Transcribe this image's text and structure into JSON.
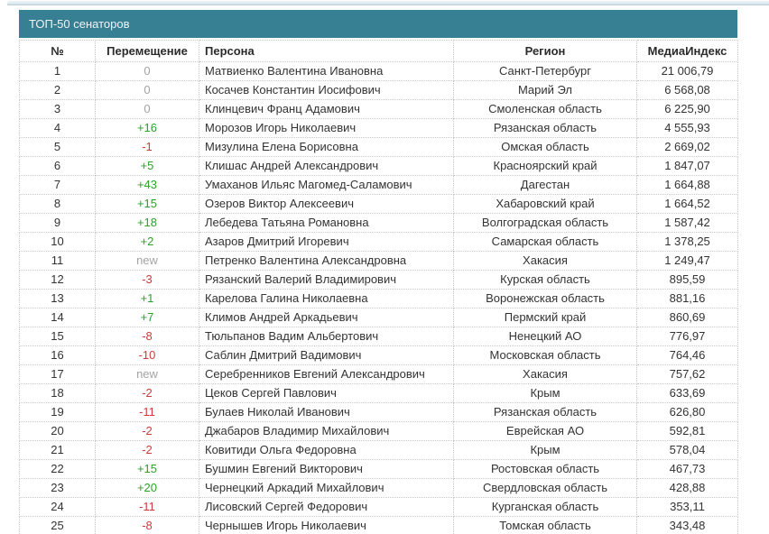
{
  "panel": {
    "title": "ТОП-50 сенаторов"
  },
  "colors": {
    "header_bg": "#377f93",
    "positive": "#2da02d",
    "negative": "#cc3b3b",
    "neutral": "#a3a3a3",
    "border": "#c9c9c9",
    "text": "#333333"
  },
  "table": {
    "columns": {
      "rank": "№",
      "movement": "Перемещение",
      "person": "Персона",
      "region": "Регион",
      "media_index": "МедиаИндекс"
    },
    "rows": [
      {
        "rank": "1",
        "movement": "0",
        "person": "Матвиенко Валентина Ивановна",
        "region": "Санкт-Петербург",
        "media_index": "21 006,79"
      },
      {
        "rank": "2",
        "movement": "0",
        "person": "Косачев Константин Иосифович",
        "region": "Марий Эл",
        "media_index": "6 568,08"
      },
      {
        "rank": "3",
        "movement": "0",
        "person": "Клинцевич Франц Адамович",
        "region": "Смоленская область",
        "media_index": "6 225,90"
      },
      {
        "rank": "4",
        "movement": "+16",
        "person": "Морозов Игорь Николаевич",
        "region": "Рязанская область",
        "media_index": "4 555,93"
      },
      {
        "rank": "5",
        "movement": "-1",
        "person": "Мизулина Елена Борисовна",
        "region": "Омская область",
        "media_index": "2 669,02"
      },
      {
        "rank": "6",
        "movement": "+5",
        "person": "Клишас Андрей Александрович",
        "region": "Красноярский край",
        "media_index": "1 847,07"
      },
      {
        "rank": "7",
        "movement": "+43",
        "person": "Умаханов Ильяс Магомед-Саламович",
        "region": "Дагестан",
        "media_index": "1 664,88"
      },
      {
        "rank": "8",
        "movement": "+15",
        "person": "Озеров Виктор Алексеевич",
        "region": "Хабаровский край",
        "media_index": "1 664,52"
      },
      {
        "rank": "9",
        "movement": "+18",
        "person": "Лебедева Татьяна Романовна",
        "region": "Волгоградская область",
        "media_index": "1 587,42"
      },
      {
        "rank": "10",
        "movement": "+2",
        "person": "Азаров Дмитрий Игоревич",
        "region": "Самарская область",
        "media_index": "1 378,25"
      },
      {
        "rank": "11",
        "movement": "new",
        "person": "Петренко Валентина Александровна",
        "region": "Хакасия",
        "media_index": "1 249,47"
      },
      {
        "rank": "12",
        "movement": "-3",
        "person": "Рязанский Валерий Владимирович",
        "region": "Курская область",
        "media_index": "895,59"
      },
      {
        "rank": "13",
        "movement": "+1",
        "person": "Карелова Галина Николаевна",
        "region": "Воронежская область",
        "media_index": "881,16"
      },
      {
        "rank": "14",
        "movement": "+7",
        "person": "Климов Андрей Аркадьевич",
        "region": "Пермский край",
        "media_index": "860,69"
      },
      {
        "rank": "15",
        "movement": "-8",
        "person": "Тюльпанов Вадим Альбертович",
        "region": "Ненецкий АО",
        "media_index": "776,97"
      },
      {
        "rank": "16",
        "movement": "-10",
        "person": "Саблин Дмитрий Вадимович",
        "region": "Московская область",
        "media_index": "764,46"
      },
      {
        "rank": "17",
        "movement": "new",
        "person": "Серебренников Евгений Александрович",
        "region": "Хакасия",
        "media_index": "757,62"
      },
      {
        "rank": "18",
        "movement": "-2",
        "person": "Цеков Сергей Павлович",
        "region": "Крым",
        "media_index": "633,69"
      },
      {
        "rank": "19",
        "movement": "-11",
        "person": "Булаев Николай Иванович",
        "region": "Рязанская область",
        "media_index": "626,80"
      },
      {
        "rank": "20",
        "movement": "-2",
        "person": "Джабаров Владимир Михайлович",
        "region": "Еврейская АО",
        "media_index": "592,81"
      },
      {
        "rank": "21",
        "movement": "-2",
        "person": "Ковитиди Ольга Федоровна",
        "region": "Крым",
        "media_index": "578,04"
      },
      {
        "rank": "22",
        "movement": "+15",
        "person": "Бушмин Евгений Викторович",
        "region": "Ростовская область",
        "media_index": "467,73"
      },
      {
        "rank": "23",
        "movement": "+20",
        "person": "Чернецкий Аркадий Михайлович",
        "region": "Свердловская область",
        "media_index": "428,88"
      },
      {
        "rank": "24",
        "movement": "-11",
        "person": "Лисовский Сергей Федорович",
        "region": "Курганская область",
        "media_index": "353,11"
      },
      {
        "rank": "25",
        "movement": "-8",
        "person": "Чернышев Игорь Николаевич",
        "region": "Томская область",
        "media_index": "343,48"
      }
    ]
  }
}
